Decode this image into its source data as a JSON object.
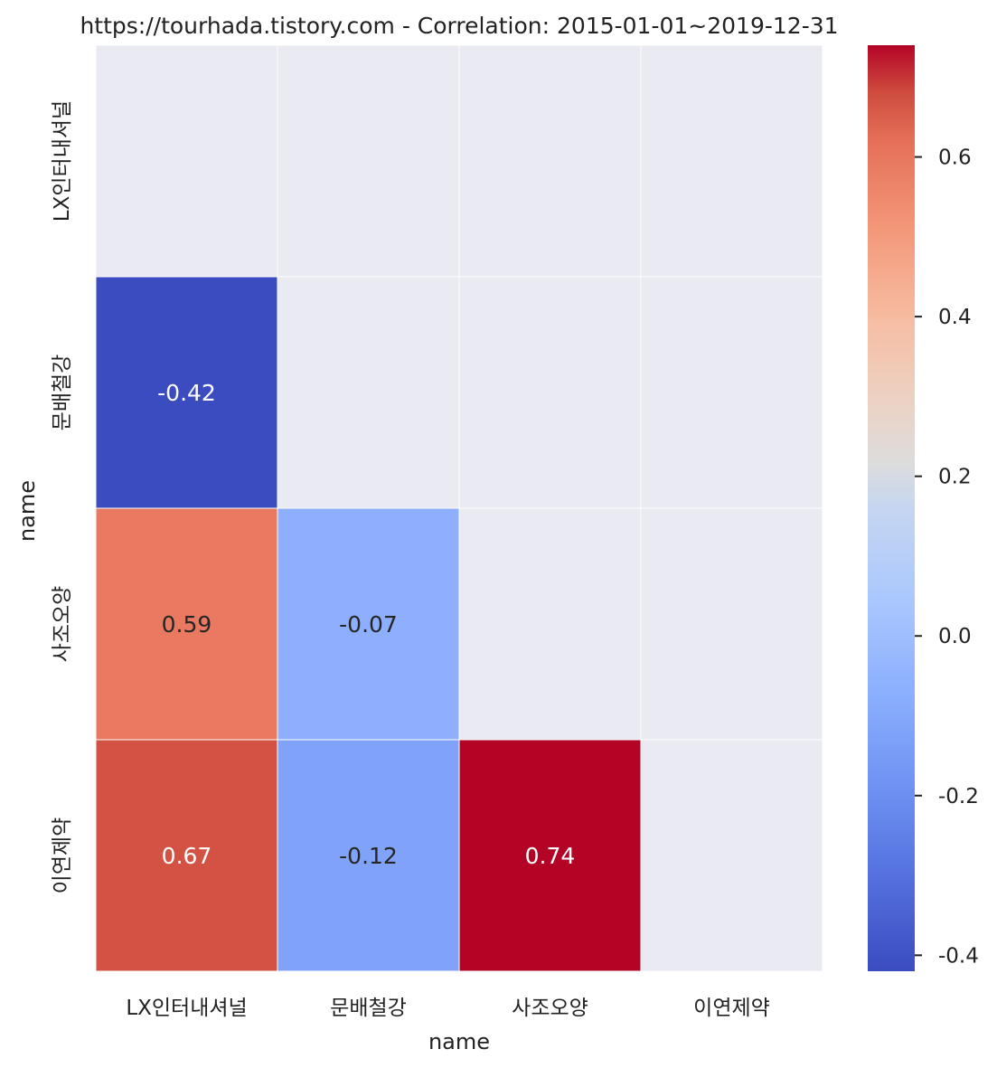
{
  "chart_data": {
    "type": "heatmap",
    "title": "https://tourhada.tistory.com - Correlation: 2015-01-01~2019-12-31",
    "xlabel": "name",
    "ylabel": "name",
    "x_categories": [
      "LX인터내셔널",
      "문배철강",
      "사조오양",
      "이연제약"
    ],
    "y_categories": [
      "LX인터내셔널",
      "문배철강",
      "사조오양",
      "이연제약"
    ],
    "values": [
      [
        null,
        null,
        null,
        null
      ],
      [
        -0.42,
        null,
        null,
        null
      ],
      [
        0.59,
        -0.07,
        null,
        null
      ],
      [
        0.67,
        -0.12,
        0.74,
        null
      ]
    ],
    "value_labels": [
      [
        "",
        "",
        "",
        ""
      ],
      [
        "-0.42",
        "",
        "",
        ""
      ],
      [
        "0.59",
        "-0.07",
        "",
        ""
      ],
      [
        "0.67",
        "-0.12",
        "0.74",
        ""
      ]
    ],
    "colorscale": "coolwarm",
    "vmin": -0.42,
    "vmax": 0.74,
    "colorbar_ticks": [
      -0.4,
      -0.2,
      0.0,
      0.2,
      0.4,
      0.6
    ],
    "colorbar_tick_labels": [
      "-0.4",
      "-0.2",
      "0.0",
      "0.2",
      "0.4",
      "0.6"
    ],
    "masked_color": "#eaeaf2",
    "grid": true
  }
}
